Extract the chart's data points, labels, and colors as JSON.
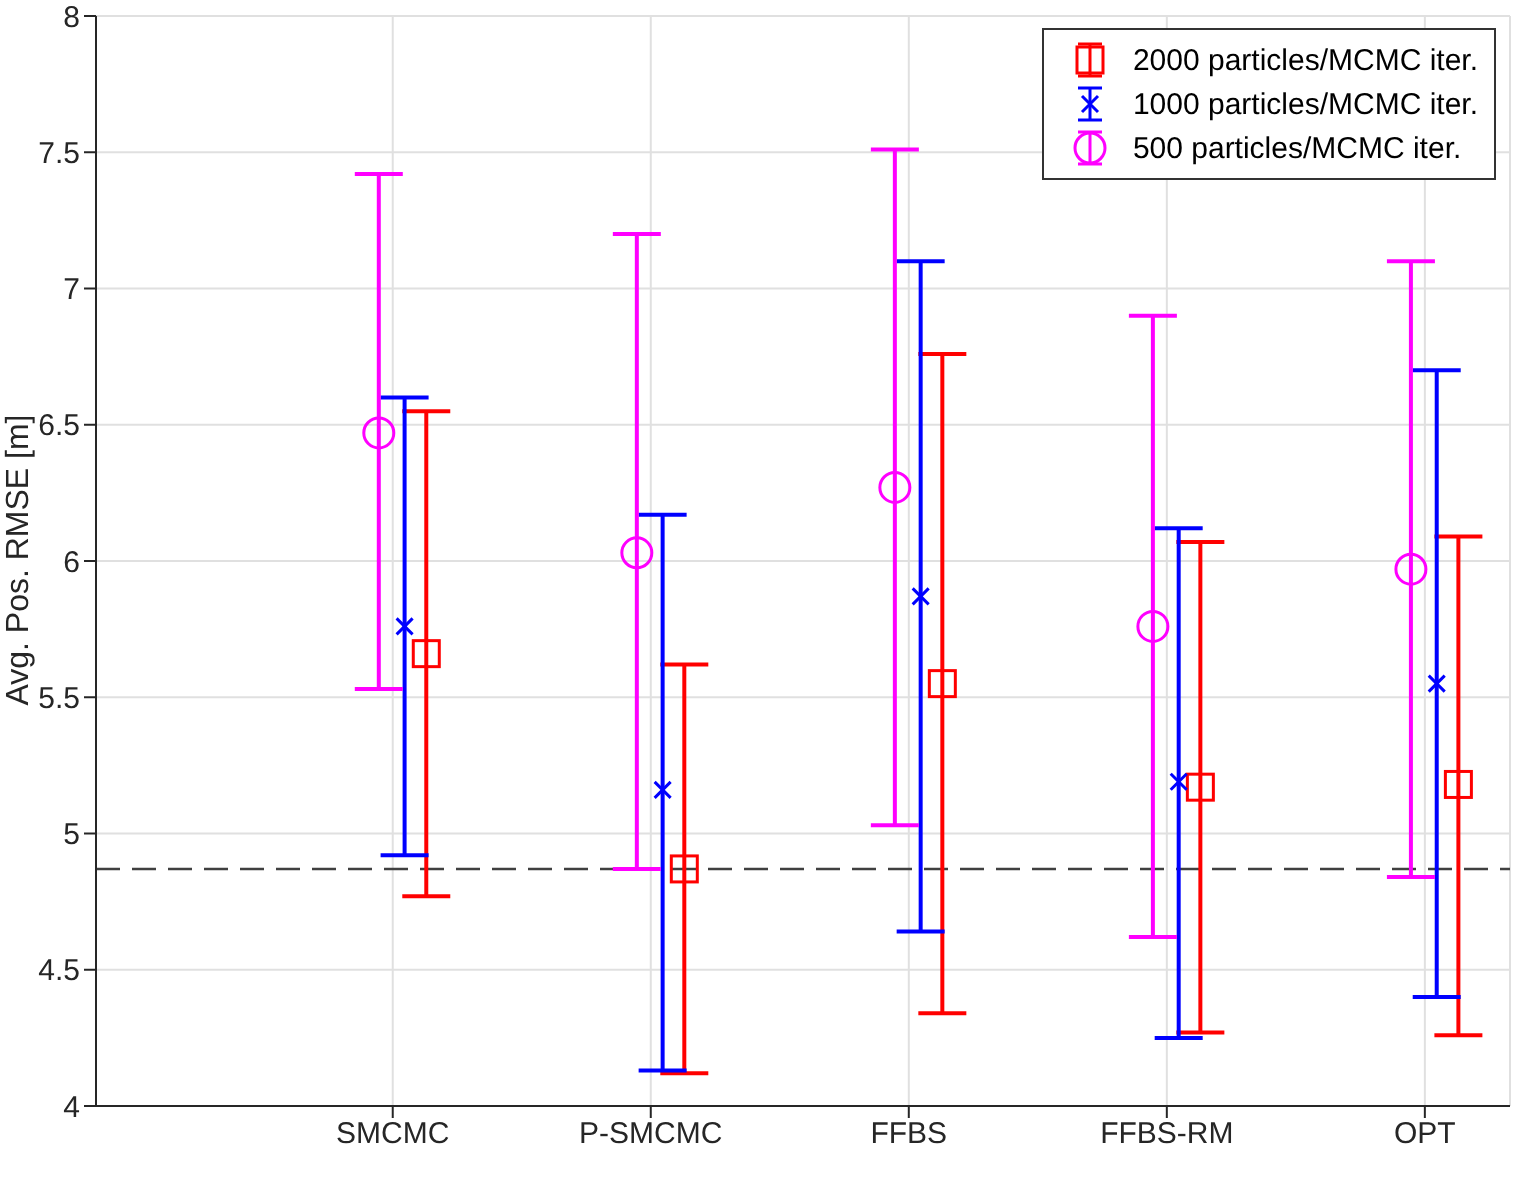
{
  "chart_data": {
    "type": "scatter",
    "ylabel": "Avg. Pos. RMSE [m]",
    "categories": [
      "SMCMC",
      "P-SMCMC",
      "FFBS",
      "FFBS-RM",
      "OPT"
    ],
    "ylim": [
      4,
      8
    ],
    "yticks": [
      4,
      4.5,
      5,
      5.5,
      6,
      6.5,
      7,
      7.5,
      8
    ],
    "grid": true,
    "legend": "top right",
    "series": [
      {
        "name": "2000 particles/MCMC iter.",
        "color": "#ff0000",
        "marker": "square",
        "values": [
          5.66,
          4.87,
          5.55,
          5.17,
          5.18
        ],
        "errors": [
          [
            4.77,
            6.55
          ],
          [
            4.12,
            5.62
          ],
          [
            4.34,
            6.76
          ],
          [
            4.27,
            6.07
          ],
          [
            4.26,
            6.09
          ]
        ]
      },
      {
        "name": "1000 particles/MCMC iter.",
        "color": "#0000ff",
        "marker": "cross",
        "values": [
          5.76,
          5.16,
          5.87,
          5.19,
          5.55
        ],
        "errors": [
          [
            4.92,
            6.6
          ],
          [
            4.13,
            6.17
          ],
          [
            4.64,
            7.1
          ],
          [
            4.25,
            6.12
          ],
          [
            4.4,
            6.7
          ]
        ]
      },
      {
        "name": "500 particles/MCMC iter.",
        "color": "#ff00ff",
        "marker": "circle",
        "values": [
          6.47,
          6.03,
          6.27,
          5.76,
          5.97
        ],
        "errors": [
          [
            5.53,
            7.42
          ],
          [
            4.87,
            7.2
          ],
          [
            5.03,
            7.51
          ],
          [
            4.62,
            6.9
          ],
          [
            4.84,
            7.1
          ]
        ]
      }
    ],
    "ref_lines": [
      {
        "axis": "y",
        "value": 4.87,
        "color": "#404040",
        "line_style": "dashed"
      }
    ]
  }
}
